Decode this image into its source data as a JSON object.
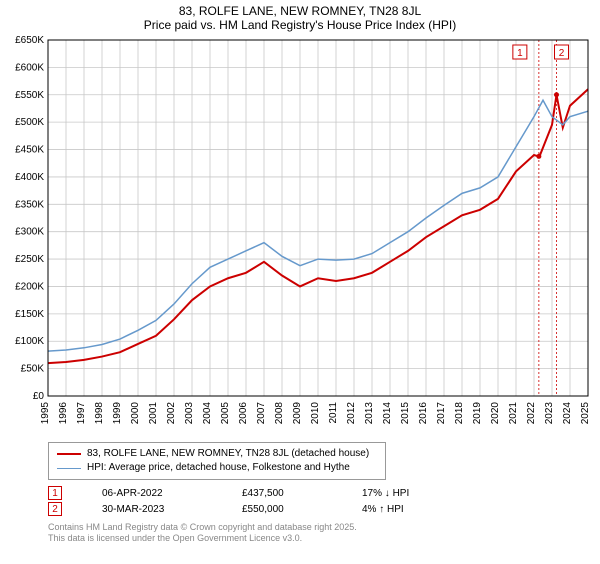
{
  "title_main": "83, ROLFE LANE, NEW ROMNEY, TN28 8JL",
  "title_sub": "Price paid vs. HM Land Registry's House Price Index (HPI)",
  "chart": {
    "type": "line",
    "background_color": "#ffffff",
    "grid_color": "#c8c8c8",
    "axis_color": "#000000",
    "ylim": [
      0,
      650
    ],
    "ytick_step": 50,
    "ylabels": [
      "£0",
      "£50K",
      "£100K",
      "£150K",
      "£200K",
      "£250K",
      "£300K",
      "£350K",
      "£400K",
      "£450K",
      "£500K",
      "£550K",
      "£600K",
      "£650K"
    ],
    "xlim": [
      1995,
      2025
    ],
    "xlabels": [
      "1995",
      "1996",
      "1997",
      "1998",
      "1999",
      "2000",
      "2001",
      "2002",
      "2003",
      "2004",
      "2005",
      "2006",
      "2007",
      "2008",
      "2009",
      "2010",
      "2011",
      "2012",
      "2013",
      "2014",
      "2015",
      "2016",
      "2017",
      "2018",
      "2019",
      "2020",
      "2021",
      "2022",
      "2023",
      "2024",
      "2025"
    ],
    "series": [
      {
        "name": "price_paid",
        "label": "83, ROLFE LANE, NEW ROMNEY, TN28 8JL (detached house)",
        "color": "#cc0000",
        "line_width": 2,
        "points": [
          [
            1995,
            60
          ],
          [
            1996,
            62
          ],
          [
            1997,
            66
          ],
          [
            1998,
            72
          ],
          [
            1999,
            80
          ],
          [
            2000,
            95
          ],
          [
            2001,
            110
          ],
          [
            2002,
            140
          ],
          [
            2003,
            175
          ],
          [
            2004,
            200
          ],
          [
            2005,
            215
          ],
          [
            2006,
            225
          ],
          [
            2007,
            245
          ],
          [
            2008,
            220
          ],
          [
            2009,
            200
          ],
          [
            2010,
            215
          ],
          [
            2011,
            210
          ],
          [
            2012,
            215
          ],
          [
            2013,
            225
          ],
          [
            2014,
            245
          ],
          [
            2015,
            265
          ],
          [
            2016,
            290
          ],
          [
            2017,
            310
          ],
          [
            2018,
            330
          ],
          [
            2019,
            340
          ],
          [
            2020,
            360
          ],
          [
            2021,
            410
          ],
          [
            2022,
            440
          ],
          [
            2022.3,
            437
          ],
          [
            2023,
            495
          ],
          [
            2023.25,
            550
          ],
          [
            2023.6,
            490
          ],
          [
            2024,
            530
          ],
          [
            2025,
            560
          ]
        ]
      },
      {
        "name": "hpi",
        "label": "HPI: Average price, detached house, Folkestone and Hythe",
        "color": "#6699cc",
        "line_width": 1.5,
        "points": [
          [
            1995,
            82
          ],
          [
            1996,
            84
          ],
          [
            1997,
            88
          ],
          [
            1998,
            94
          ],
          [
            1999,
            104
          ],
          [
            2000,
            120
          ],
          [
            2001,
            138
          ],
          [
            2002,
            168
          ],
          [
            2003,
            205
          ],
          [
            2004,
            235
          ],
          [
            2005,
            250
          ],
          [
            2006,
            265
          ],
          [
            2007,
            280
          ],
          [
            2008,
            255
          ],
          [
            2009,
            238
          ],
          [
            2010,
            250
          ],
          [
            2011,
            248
          ],
          [
            2012,
            250
          ],
          [
            2013,
            260
          ],
          [
            2014,
            280
          ],
          [
            2015,
            300
          ],
          [
            2016,
            325
          ],
          [
            2017,
            348
          ],
          [
            2018,
            370
          ],
          [
            2019,
            380
          ],
          [
            2020,
            400
          ],
          [
            2021,
            455
          ],
          [
            2022,
            510
          ],
          [
            2022.5,
            540
          ],
          [
            2023,
            510
          ],
          [
            2023.6,
            495
          ],
          [
            2024,
            510
          ],
          [
            2025,
            520
          ]
        ]
      }
    ],
    "markers": [
      {
        "n": "1",
        "x": 2022.27,
        "y": 437.5,
        "color": "#cc0000",
        "line_color": "#cc0000"
      },
      {
        "n": "2",
        "x": 2023.25,
        "y": 550,
        "color": "#cc0000",
        "line_color": "#cc0000"
      }
    ],
    "label_fontsize": 10,
    "tick_fontsize": 10
  },
  "legend": {
    "series1": "83, ROLFE LANE, NEW ROMNEY, TN28 8JL (detached house)",
    "series2": "HPI: Average price, detached house, Folkestone and Hythe"
  },
  "sales": [
    {
      "n": "1",
      "date": "06-APR-2022",
      "price": "£437,500",
      "hpi": "17% ↓ HPI",
      "color": "#cc0000"
    },
    {
      "n": "2",
      "date": "30-MAR-2023",
      "price": "£550,000",
      "hpi": "4% ↑ HPI",
      "color": "#cc0000"
    }
  ],
  "copyright1": "Contains HM Land Registry data © Crown copyright and database right 2025.",
  "copyright2": "This data is licensed under the Open Government Licence v3.0."
}
